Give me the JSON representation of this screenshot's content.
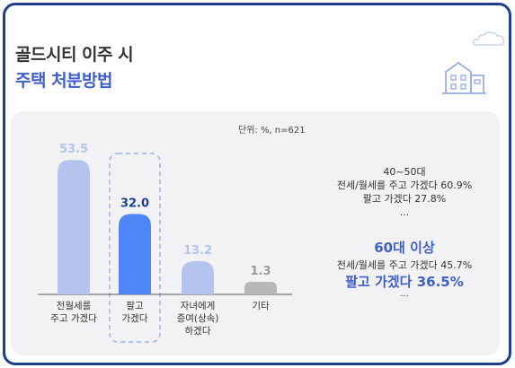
{
  "header": {
    "title_line1": "골드시티 이주 시",
    "title_line2": "주택 처분방법"
  },
  "unit_note": "단위: %, n=621",
  "colors": {
    "border": "#1e3f8f",
    "accent": "#3f5fc8",
    "bar_light": "#b4c4ef",
    "bar_highlight": "#4f86f7",
    "bar_gray": "#b8b8b8",
    "panel": "#f2f2f4"
  },
  "icons": [
    "cloud-icon",
    "house-icon"
  ],
  "chart_data": {
    "type": "bar",
    "categories": [
      [
        "전월세를",
        "주고 가겠다"
      ],
      [
        "팔고",
        "가겠다"
      ],
      [
        "자녀에게",
        "증여(상속)",
        "하겠다"
      ],
      [
        "기타"
      ]
    ],
    "values": [
      53.5,
      32.0,
      13.2,
      1.3
    ],
    "value_labels": [
      "53.5",
      "32.0",
      "13.2",
      "1.3"
    ],
    "highlight_index": 1,
    "ylim": [
      0,
      55
    ],
    "grid": false,
    "legend": "none"
  },
  "annotations": {
    "group_a": {
      "title": "40~50대",
      "line1": "전세/월세를 주고 가겠다 60.9%",
      "line2": "팔고 가겠다 27.8%",
      "dots": "..."
    },
    "group_b": {
      "title": "60대 이상",
      "line1": "전세/월세를 주고 가겠다 45.7%",
      "line2": "팔고 가겠다 36.5%",
      "dots": "..."
    }
  }
}
